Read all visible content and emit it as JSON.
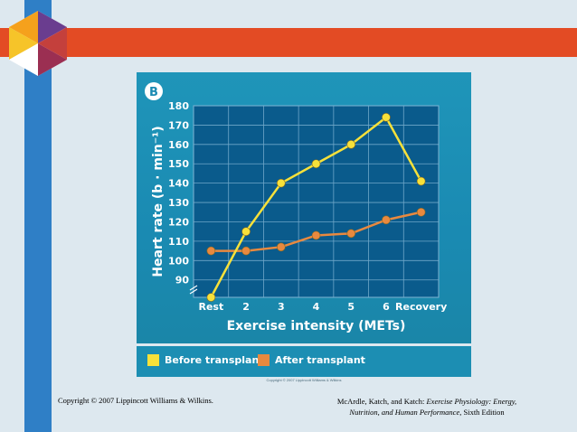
{
  "slide": {
    "footer_left": "Copyright © 2007 Lippincott Williams & Wilkins.",
    "footer_right_authors": "McArdle, Katch, and Katch: ",
    "footer_right_title_1": "Exercise Physiology: Energy,",
    "footer_right_title_2": "Nutrition, and Human Performance,",
    "footer_right_edition": " Sixth Edition"
  },
  "figure": {
    "copyright": "Copyright © 2007 Lippincott Williams & Wilkins"
  },
  "chart_data": {
    "type": "line",
    "panel_label": "B",
    "title": "",
    "xlabel": "Exercise intensity (METs)",
    "ylabel": "Heart rate (b · min⁻¹)",
    "categories": [
      "Rest",
      "2",
      "3",
      "4",
      "5",
      "6",
      "Recovery"
    ],
    "yticks": [
      90,
      100,
      110,
      120,
      130,
      140,
      150,
      160,
      170,
      180
    ],
    "ylim": [
      81,
      180
    ],
    "axis_break": true,
    "grid": true,
    "legend_position": "bottom",
    "series": [
      {
        "name": "Before transplant",
        "color": "#f7e13a",
        "values": [
          81,
          115,
          140,
          150,
          160,
          174,
          141
        ]
      },
      {
        "name": "After transplant",
        "color": "#e8893f",
        "values": [
          105,
          105,
          107,
          113,
          114,
          121,
          125
        ]
      }
    ]
  },
  "colors": {
    "accent_red": "#e34b24",
    "accent_blue": "#2f7fc6",
    "plot_bg": "#0a5b8c"
  }
}
